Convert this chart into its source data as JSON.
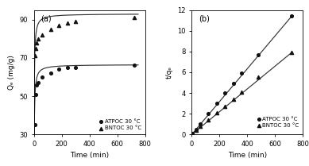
{
  "panel_a": {
    "title": "(a)",
    "xlabel": "Time (min)",
    "ylabel": "Qₑ (mg/g)",
    "xlim": [
      0,
      780
    ],
    "ylim": [
      30,
      95
    ],
    "xticks": [
      0,
      200,
      400,
      600,
      800
    ],
    "yticks": [
      30,
      50,
      70,
      90
    ],
    "ATPOC_scatter_x": [
      5,
      10,
      20,
      30,
      60,
      120,
      180,
      240,
      300,
      720
    ],
    "ATPOC_scatter_y": [
      35,
      51,
      56,
      57,
      60,
      62,
      64,
      65,
      65,
      66
    ],
    "BNTOC_scatter_x": [
      5,
      10,
      20,
      30,
      60,
      120,
      180,
      240,
      300,
      720
    ],
    "BNTOC_scatter_y": [
      71,
      75,
      78,
      80,
      82,
      85,
      87,
      88,
      89,
      91
    ],
    "ATPOC_qe": 66.5,
    "ATPOC_k2": 0.0065,
    "BNTOC_qe": 93.0,
    "BNTOC_k2": 0.006,
    "legend_labels": [
      "ATPOC 30 °C",
      "BNTOC 30 °C"
    ],
    "scatter_color": "#111111",
    "line_color": "#333333"
  },
  "panel_b": {
    "title": "(b)",
    "xlabel": "Time (min)",
    "ylabel": "t/qₑ",
    "xlim": [
      0,
      780
    ],
    "ylim": [
      0,
      12
    ],
    "xticks": [
      0,
      200,
      400,
      600,
      800
    ],
    "yticks": [
      0,
      2,
      4,
      6,
      8,
      10,
      12
    ],
    "ATPOC_scatter_x": [
      5,
      30,
      60,
      120,
      180,
      240,
      300,
      360,
      480,
      720
    ],
    "ATPOC_scatter_y": [
      0.09,
      0.5,
      1.0,
      2.0,
      3.0,
      4.0,
      4.9,
      5.9,
      7.7,
      11.4
    ],
    "BNTOC_scatter_x": [
      5,
      30,
      60,
      120,
      180,
      240,
      300,
      360,
      480,
      720
    ],
    "BNTOC_scatter_y": [
      0.07,
      0.4,
      0.75,
      1.4,
      2.1,
      2.7,
      3.4,
      4.1,
      5.5,
      7.9
    ],
    "ATPOC_line_x": [
      0,
      720
    ],
    "ATPOC_line_y": [
      0,
      11.4
    ],
    "BNTOC_line_x": [
      0,
      720
    ],
    "BNTOC_line_y": [
      0,
      7.9
    ],
    "legend_labels": [
      "ATPOC 30 °C",
      "BNTOC 30 °C"
    ],
    "scatter_color": "#111111",
    "line_color": "#333333"
  },
  "bg_color": "#ffffff",
  "fig_facecolor": "#ffffff"
}
